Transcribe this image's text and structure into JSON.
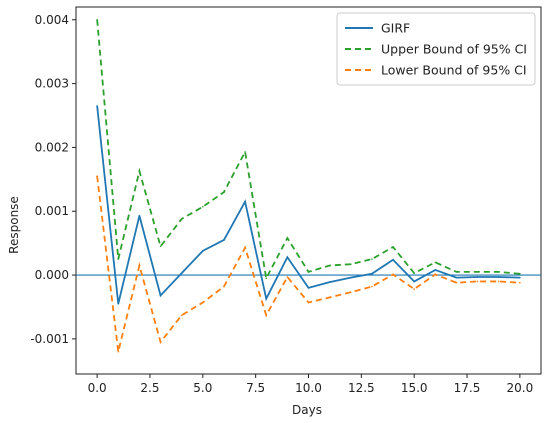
{
  "chart_data": {
    "type": "line",
    "xlabel": "Days",
    "ylabel": "Response",
    "xlim": [
      -1,
      21
    ],
    "ylim": [
      -0.00155,
      0.0042
    ],
    "x_ticks": [
      0.0,
      2.5,
      5.0,
      7.5,
      10.0,
      12.5,
      15.0,
      17.5,
      20.0
    ],
    "x_tick_labels": [
      "0.0",
      "2.5",
      "5.0",
      "7.5",
      "10.0",
      "12.5",
      "15.0",
      "17.5",
      "20.0"
    ],
    "y_ticks": [
      -0.001,
      0.0,
      0.001,
      0.002,
      0.003,
      0.004
    ],
    "y_tick_labels": [
      "-0.001",
      "0.000",
      "0.001",
      "0.002",
      "0.003",
      "0.004"
    ],
    "grid": false,
    "legend_position": "top-right",
    "x": [
      0,
      1,
      2,
      3,
      4,
      5,
      6,
      7,
      8,
      9,
      10,
      11,
      12,
      13,
      14,
      15,
      16,
      17,
      18,
      19,
      20
    ],
    "series": [
      {
        "name": "GIRF",
        "style": "solid",
        "color": "#1f77b4",
        "values": [
          0.00265,
          -0.00045,
          0.00093,
          -0.00032,
          3e-05,
          0.00038,
          0.00055,
          0.00115,
          -0.00037,
          0.00028,
          -0.0002,
          -0.00011,
          -4e-05,
          2e-05,
          0.00024,
          -0.0001,
          8e-05,
          -4e-05,
          -3e-05,
          -3e-05,
          -4e-05
        ]
      },
      {
        "name": "Upper Bound of 95% CI",
        "style": "dashed",
        "color": "#2ca02c",
        "values": [
          0.004,
          0.00025,
          0.00163,
          0.00045,
          0.00088,
          0.00107,
          0.0013,
          0.00193,
          -5e-05,
          0.00058,
          5e-05,
          0.00015,
          0.00017,
          0.00025,
          0.00044,
          3e-05,
          0.0002,
          5e-05,
          5e-05,
          5e-05,
          2e-05
        ]
      },
      {
        "name": "Lower Bound of 95% CI",
        "style": "dashed",
        "color": "#ff7f0e",
        "values": [
          0.00155,
          -0.0012,
          0.00015,
          -0.00105,
          -0.00063,
          -0.00043,
          -0.00018,
          0.00043,
          -0.00063,
          -3e-05,
          -0.00043,
          -0.00035,
          -0.00027,
          -0.00018,
          1e-05,
          -0.00022,
          1e-05,
          -0.00012,
          -0.0001,
          -0.0001,
          -0.00012
        ]
      }
    ],
    "reference_line": {
      "y": 0.0,
      "color": "#1f77b4"
    }
  }
}
